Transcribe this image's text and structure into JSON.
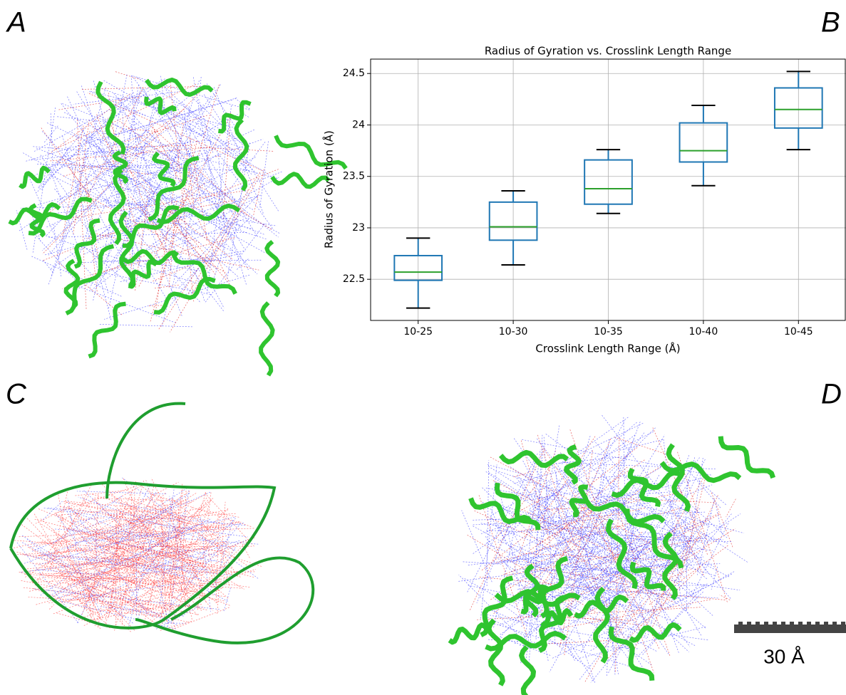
{
  "panel_labels": [
    "A",
    "B",
    "C",
    "D"
  ],
  "scale_bar": {
    "label": "30 Å"
  },
  "chart_data": {
    "type": "box",
    "title": "Radius of Gyration vs. Crosslink Length Range",
    "x_label": "Crosslink Length Range (Å)",
    "y_label": "Radius of Gyration (Å)",
    "categories": [
      "10-25",
      "10-30",
      "10-35",
      "10-40",
      "10-45"
    ],
    "whisker_low": [
      22.22,
      22.64,
      23.14,
      23.41,
      23.76
    ],
    "q1": [
      22.49,
      22.88,
      23.23,
      23.64,
      23.97
    ],
    "median": [
      22.57,
      23.01,
      23.38,
      23.75,
      24.15
    ],
    "q3": [
      22.73,
      23.25,
      23.66,
      24.02,
      24.36
    ],
    "whisker_high": [
      22.9,
      23.36,
      23.76,
      24.19,
      24.52
    ],
    "box_color": "#1f77b4",
    "median_color": "#2ca02c",
    "whisker_color": "#000000",
    "ylim": [
      22.1,
      24.64
    ],
    "yticks": [
      22.5,
      23.0,
      23.5,
      24.0,
      24.5
    ],
    "grid": true
  }
}
